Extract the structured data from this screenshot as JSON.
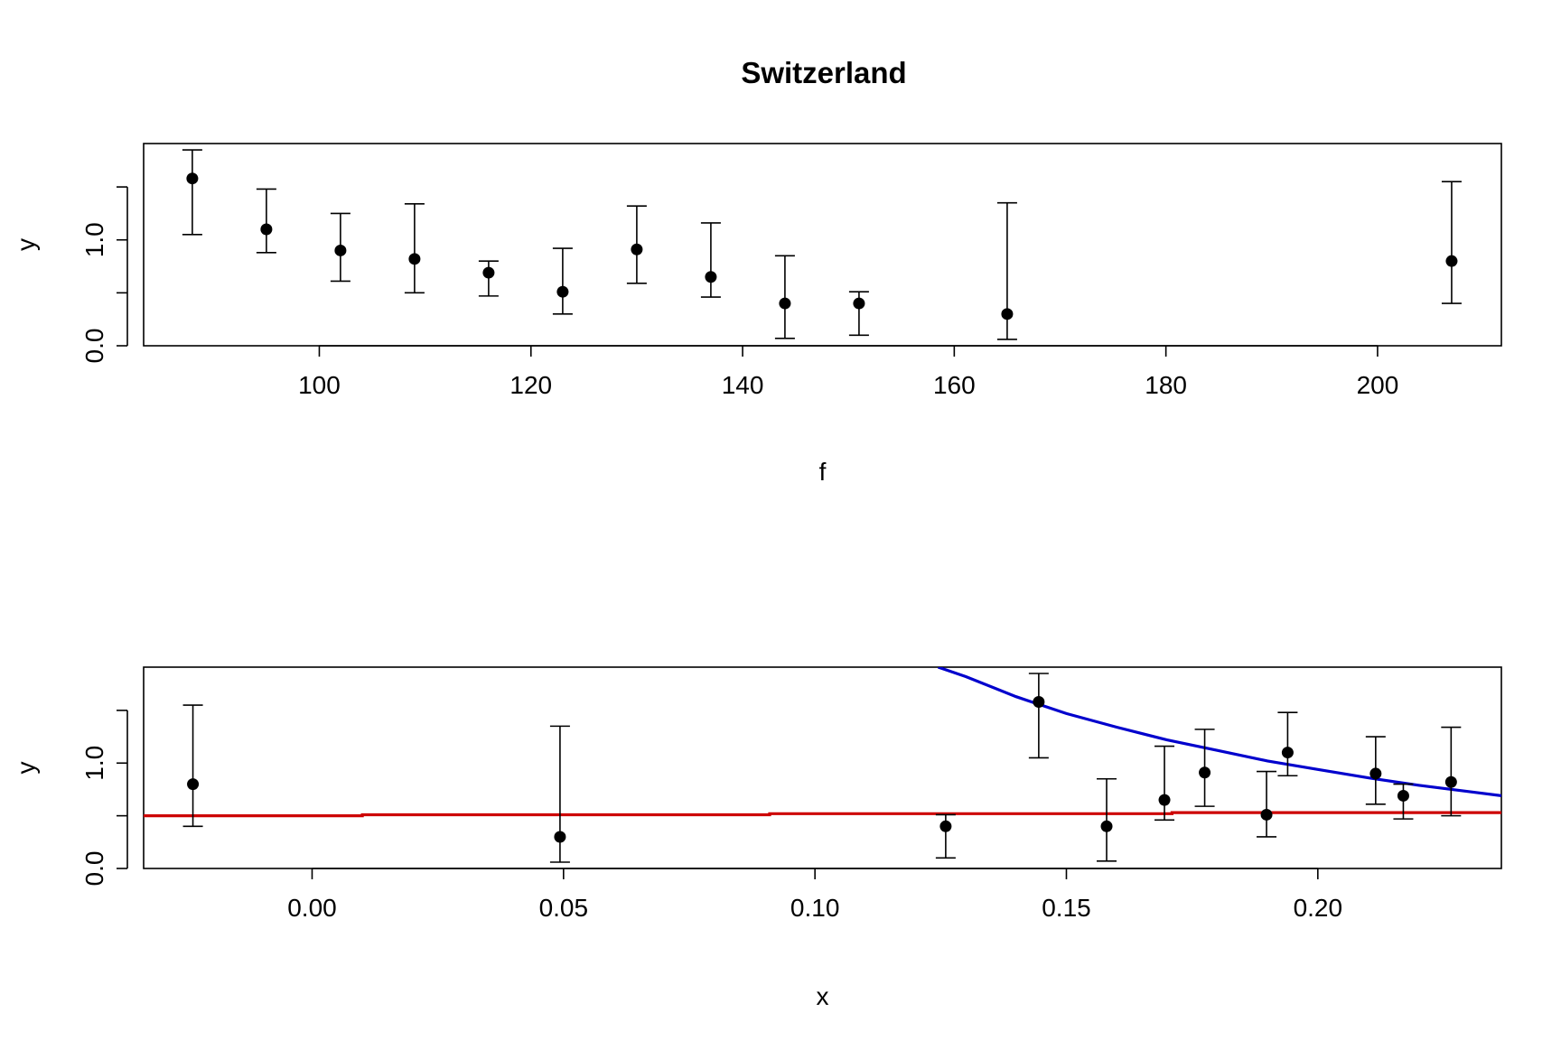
{
  "title": "Switzerland",
  "colors": {
    "frame": "#000000",
    "points": "#000000",
    "blue_curve": "#0000cd",
    "red_curve": "#cd0000"
  },
  "chart_data": [
    {
      "type": "scatter",
      "xlabel": "f",
      "ylabel": "y",
      "xlim": [
        83.4,
        211.7
      ],
      "ylim": [
        0,
        1.91
      ],
      "xticks": [
        100,
        120,
        140,
        160,
        180,
        200
      ],
      "yticks": [
        0.0,
        0.5,
        1.0,
        1.5
      ],
      "ytick_labels": [
        "0.0",
        "",
        "1.0",
        ""
      ],
      "points": [
        {
          "x": 88,
          "y": 1.58,
          "lo": 1.05,
          "hi": 1.85
        },
        {
          "x": 95,
          "y": 1.1,
          "lo": 0.88,
          "hi": 1.48
        },
        {
          "x": 102,
          "y": 0.9,
          "lo": 0.61,
          "hi": 1.25
        },
        {
          "x": 109,
          "y": 0.82,
          "lo": 0.5,
          "hi": 1.34
        },
        {
          "x": 116,
          "y": 0.69,
          "lo": 0.47,
          "hi": 0.8
        },
        {
          "x": 123,
          "y": 0.51,
          "lo": 0.3,
          "hi": 0.92
        },
        {
          "x": 130,
          "y": 0.91,
          "lo": 0.59,
          "hi": 1.32
        },
        {
          "x": 137,
          "y": 0.65,
          "lo": 0.46,
          "hi": 1.16
        },
        {
          "x": 144,
          "y": 0.4,
          "lo": 0.07,
          "hi": 0.85
        },
        {
          "x": 151,
          "y": 0.4,
          "lo": 0.1,
          "hi": 0.51
        },
        {
          "x": 165,
          "y": 0.3,
          "lo": 0.06,
          "hi": 1.35
        },
        {
          "x": 207,
          "y": 0.8,
          "lo": 0.4,
          "hi": 1.55
        }
      ]
    },
    {
      "type": "scatter",
      "xlabel": "x",
      "ylabel": "y",
      "xlim": [
        -0.0335,
        0.2365
      ],
      "ylim": [
        0,
        1.91
      ],
      "xticks": [
        0.0,
        0.05,
        0.1,
        0.15,
        0.2
      ],
      "xtick_labels": [
        "0.00",
        "0.05",
        "0.10",
        "0.15",
        "0.20"
      ],
      "yticks": [
        0.0,
        0.5,
        1.0,
        1.5
      ],
      "ytick_labels": [
        "0.0",
        "",
        "1.0",
        ""
      ],
      "points": [
        {
          "x": -0.0237,
          "y": 0.8,
          "lo": 0.4,
          "hi": 1.55
        },
        {
          "x": 0.0493,
          "y": 0.3,
          "lo": 0.06,
          "hi": 1.35
        },
        {
          "x": 0.126,
          "y": 0.4,
          "lo": 0.1,
          "hi": 0.51
        },
        {
          "x": 0.1445,
          "y": 1.58,
          "lo": 1.05,
          "hi": 1.85
        },
        {
          "x": 0.158,
          "y": 0.4,
          "lo": 0.07,
          "hi": 0.85
        },
        {
          "x": 0.1695,
          "y": 0.65,
          "lo": 0.46,
          "hi": 1.16
        },
        {
          "x": 0.1775,
          "y": 0.91,
          "lo": 0.59,
          "hi": 1.32
        },
        {
          "x": 0.1898,
          "y": 0.51,
          "lo": 0.3,
          "hi": 0.92
        },
        {
          "x": 0.194,
          "y": 1.1,
          "lo": 0.88,
          "hi": 1.48
        },
        {
          "x": 0.2115,
          "y": 0.9,
          "lo": 0.61,
          "hi": 1.25
        },
        {
          "x": 0.217,
          "y": 0.69,
          "lo": 0.47,
          "hi": 0.8
        },
        {
          "x": 0.2265,
          "y": 0.82,
          "lo": 0.5,
          "hi": 1.34
        }
      ],
      "lines": [
        {
          "color": "#0000cd",
          "points": [
            [
              0.1245,
              1.91
            ],
            [
              0.13,
              1.82
            ],
            [
              0.14,
              1.63
            ],
            [
              0.15,
              1.47
            ],
            [
              0.16,
              1.34
            ],
            [
              0.17,
              1.22
            ],
            [
              0.18,
              1.12
            ],
            [
              0.19,
              1.02
            ],
            [
              0.2,
              0.94
            ],
            [
              0.21,
              0.86
            ],
            [
              0.22,
              0.79
            ],
            [
              0.23,
              0.73
            ],
            [
              0.2365,
              0.69
            ]
          ]
        },
        {
          "color": "#cd0000",
          "points": [
            [
              -0.0335,
              0.5
            ],
            [
              0.01,
              0.5
            ],
            [
              0.01,
              0.51
            ],
            [
              0.091,
              0.51
            ],
            [
              0.091,
              0.52
            ],
            [
              0.171,
              0.52
            ],
            [
              0.171,
              0.53
            ],
            [
              0.2365,
              0.53
            ]
          ]
        }
      ]
    }
  ]
}
